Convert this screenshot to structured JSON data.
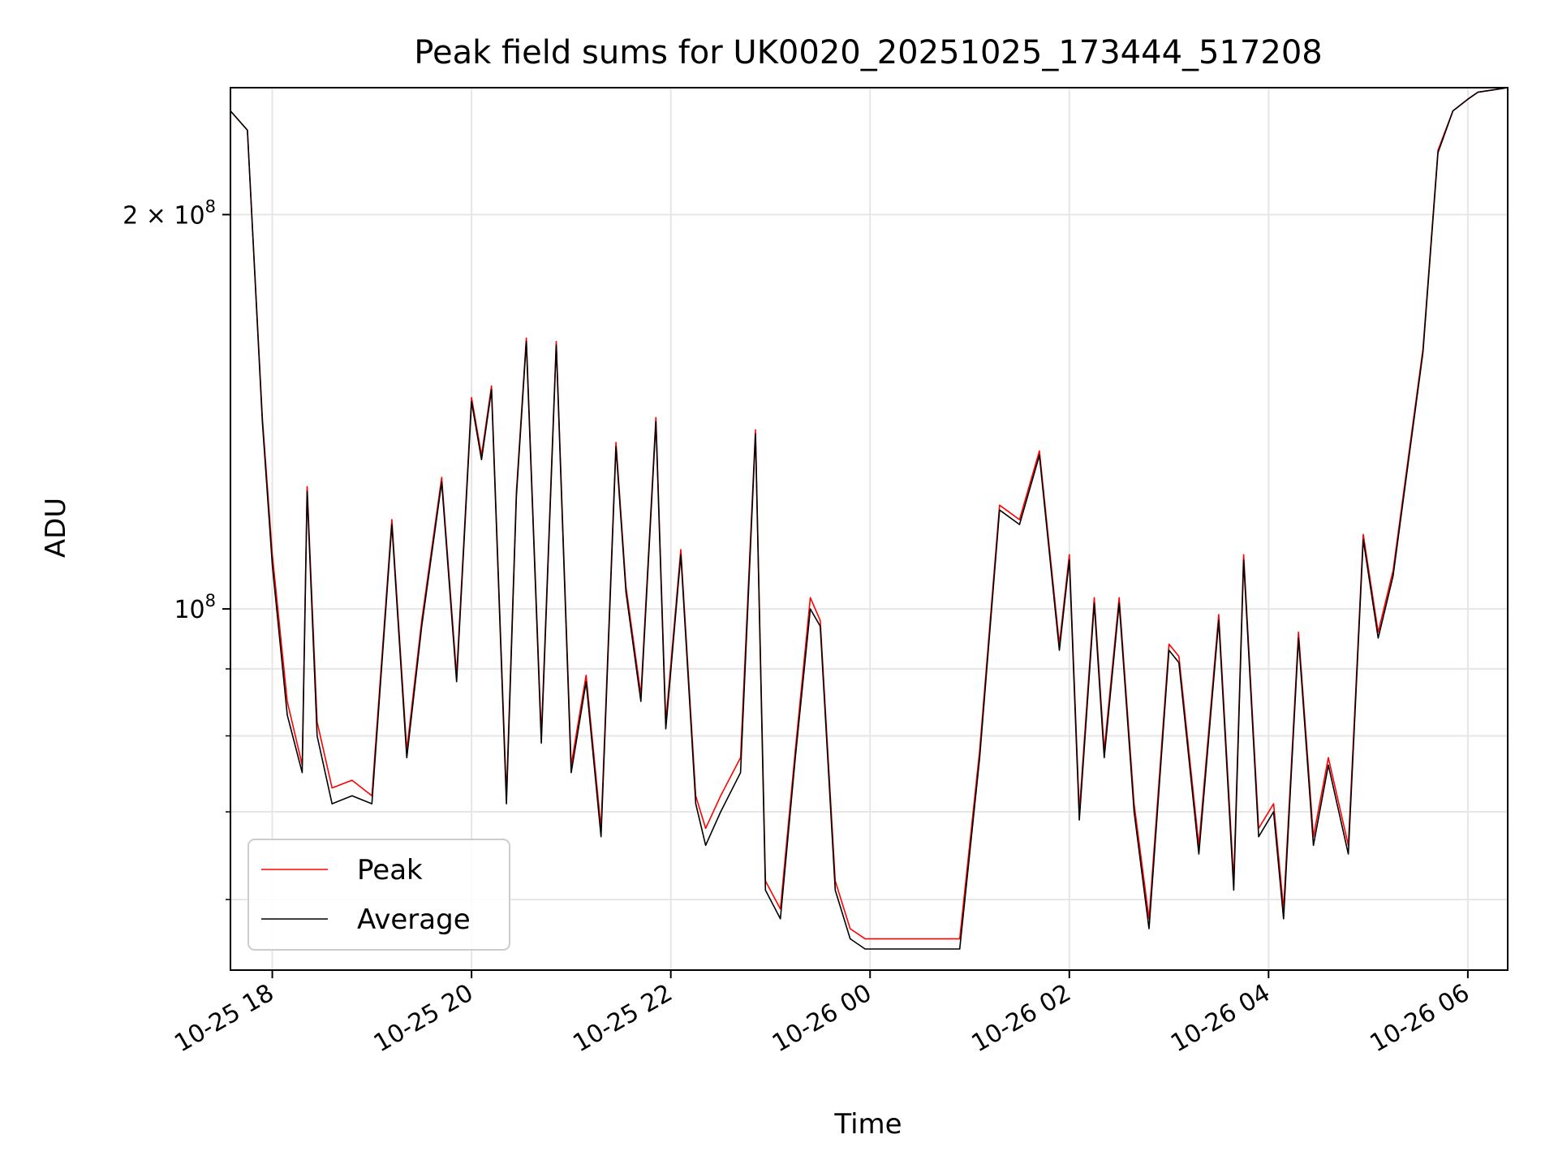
{
  "chart_data": {
    "type": "line",
    "title": "Peak field sums for UK0020_20251025_173444_517208",
    "xlabel": "Time",
    "ylabel": "ADU",
    "yscale": "log",
    "ylim": [
      53000000,
      250000000
    ],
    "xlim_hours": [
      -0.42,
      12.4
    ],
    "grid": true,
    "legend_position": "lower-left",
    "x_ticks": [
      {
        "label": "10-25 18",
        "hour": 0
      },
      {
        "label": "10-25 20",
        "hour": 2
      },
      {
        "label": "10-25 22",
        "hour": 4
      },
      {
        "label": "10-26 00",
        "hour": 6
      },
      {
        "label": "10-26 02",
        "hour": 8
      },
      {
        "label": "10-26 04",
        "hour": 10
      },
      {
        "label": "10-26 06",
        "hour": 12
      }
    ],
    "y_ticks": [
      {
        "label": "2 × 10",
        "exp": "8",
        "value": 200000000
      },
      {
        "label": "10",
        "exp": "8",
        "value": 100000000
      }
    ],
    "y_minor_ticks": [
      60000000,
      70000000,
      80000000,
      90000000
    ],
    "x_hours": [
      -0.42,
      -0.25,
      -0.1,
      0.0,
      0.15,
      0.3,
      0.35,
      0.45,
      0.6,
      0.8,
      1.0,
      1.2,
      1.35,
      1.5,
      1.7,
      1.85,
      2.0,
      2.1,
      2.2,
      2.35,
      2.45,
      2.55,
      2.7,
      2.85,
      3.0,
      3.15,
      3.3,
      3.45,
      3.55,
      3.7,
      3.85,
      3.95,
      4.1,
      4.25,
      4.35,
      4.5,
      4.7,
      4.85,
      4.95,
      5.1,
      5.25,
      5.4,
      5.5,
      5.65,
      5.8,
      5.95,
      6.1,
      6.3,
      6.5,
      6.7,
      6.9,
      7.1,
      7.3,
      7.5,
      7.7,
      7.9,
      8.0,
      8.1,
      8.25,
      8.35,
      8.5,
      8.65,
      8.8,
      9.0,
      9.1,
      9.3,
      9.5,
      9.65,
      9.75,
      9.9,
      10.05,
      10.15,
      10.3,
      10.45,
      10.6,
      10.8,
      10.95,
      11.1,
      11.25,
      11.4,
      11.55,
      11.7,
      11.85,
      12.0,
      12.1,
      12.25,
      12.4
    ],
    "series": [
      {
        "name": "Peak",
        "color": "#ff0000",
        "values": [
          240000000,
          232000000,
          140000000,
          110000000,
          85000000,
          76000000,
          124000000,
          82000000,
          73000000,
          74000000,
          72000000,
          117000000,
          78000000,
          98000000,
          126000000,
          89000000,
          145000000,
          131000000,
          148000000,
          72000000,
          123000000,
          161000000,
          80000000,
          160000000,
          76000000,
          89000000,
          68000000,
          134000000,
          104000000,
          86000000,
          140000000,
          82000000,
          111000000,
          72000000,
          68000000,
          72000000,
          77000000,
          137000000,
          62000000,
          59000000,
          78000000,
          102000000,
          98000000,
          62000000,
          57000000,
          56000000,
          56000000,
          56000000,
          56000000,
          56000000,
          56000000,
          78000000,
          120000000,
          117000000,
          132000000,
          94000000,
          110000000,
          70000000,
          102000000,
          78000000,
          102000000,
          71000000,
          58000000,
          94000000,
          92000000,
          66000000,
          99000000,
          62000000,
          110000000,
          68000000,
          71000000,
          59000000,
          96000000,
          67000000,
          77000000,
          66000000,
          114000000,
          96000000,
          107000000,
          130000000,
          158000000,
          224000000,
          240000000,
          245000000,
          248000000,
          249000000,
          250000000
        ]
      },
      {
        "name": "Average",
        "color": "#000000",
        "values": [
          240000000,
          232000000,
          139000000,
          108000000,
          83000000,
          75000000,
          123000000,
          80000000,
          71000000,
          72000000,
          71000000,
          116000000,
          77000000,
          97000000,
          125000000,
          88000000,
          144000000,
          130000000,
          147000000,
          71000000,
          122000000,
          160000000,
          79000000,
          159000000,
          75000000,
          88000000,
          67000000,
          133000000,
          103000000,
          85000000,
          139000000,
          81000000,
          110000000,
          71000000,
          66000000,
          70000000,
          75000000,
          136000000,
          61000000,
          58000000,
          77000000,
          100000000,
          97000000,
          61000000,
          56000000,
          55000000,
          55000000,
          55000000,
          55000000,
          55000000,
          55000000,
          77000000,
          119000000,
          116000000,
          131000000,
          93000000,
          109000000,
          69000000,
          101000000,
          77000000,
          101000000,
          70000000,
          57000000,
          93000000,
          91000000,
          65000000,
          98000000,
          61000000,
          109000000,
          67000000,
          70000000,
          58000000,
          95000000,
          66000000,
          76000000,
          65000000,
          113000000,
          95000000,
          106000000,
          129000000,
          157000000,
          223000000,
          240000000,
          245000000,
          248000000,
          249000000,
          250000000
        ]
      }
    ],
    "legend": [
      {
        "name": "Peak",
        "color": "#ff0000"
      },
      {
        "name": "Average",
        "color": "#000000"
      }
    ]
  }
}
